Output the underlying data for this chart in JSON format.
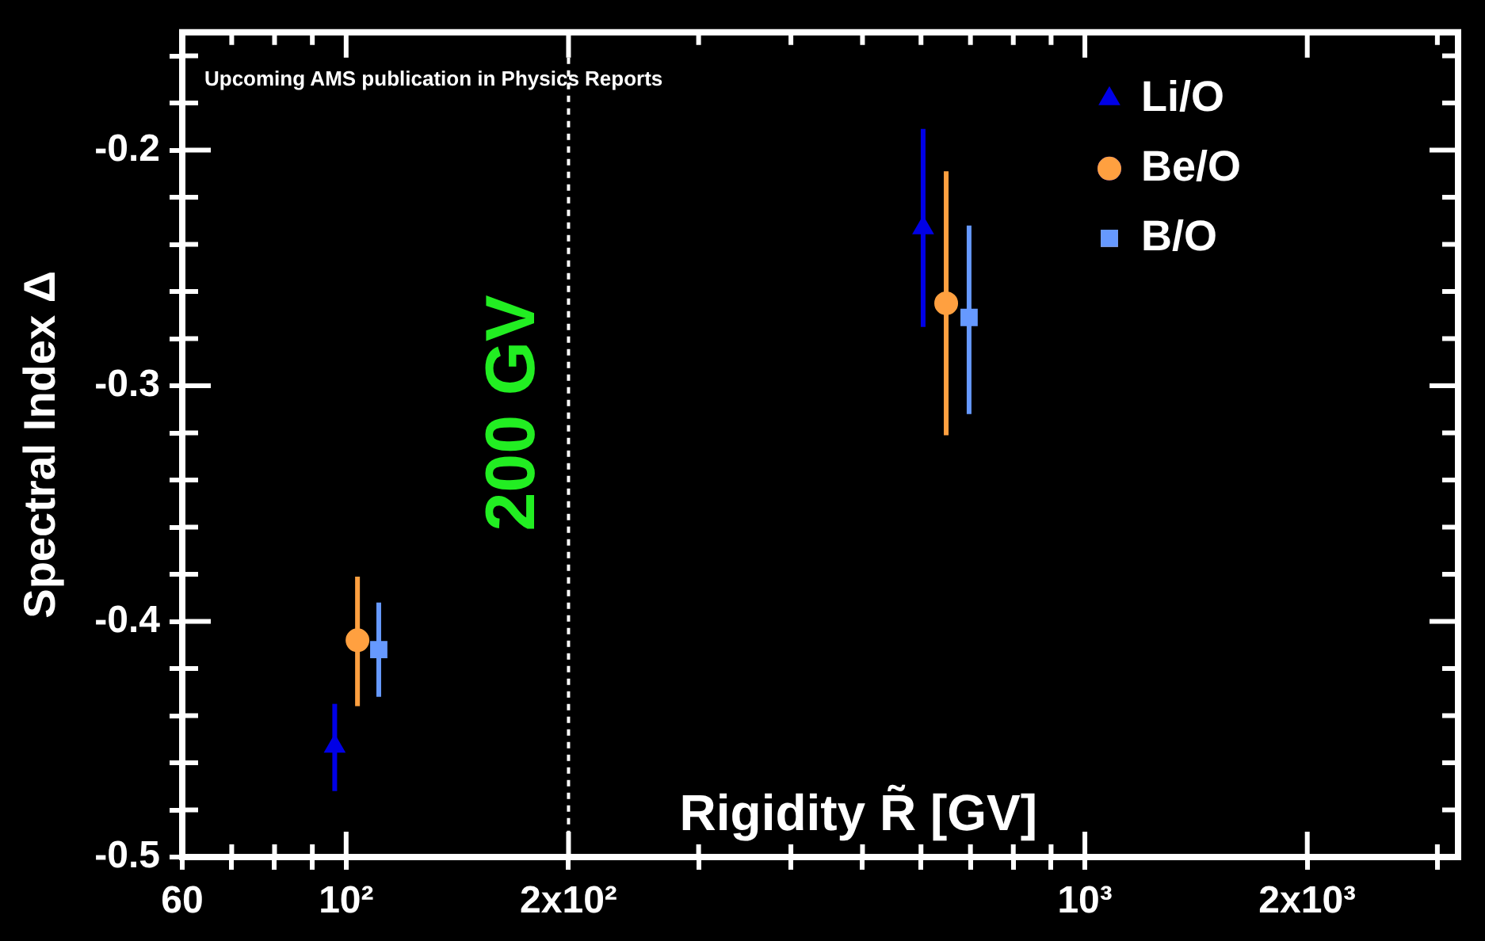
{
  "chart_data": {
    "type": "scatter",
    "xlabel": "Rigidity R̃ [GV]",
    "ylabel": "Spectral Index Δ",
    "annotations": [
      "Upcoming AMS publication in Physics Reports"
    ],
    "log": "x",
    "grid": false,
    "legend": "top right",
    "xlim": [
      60,
      3200
    ],
    "ylim": [
      -0.5,
      -0.15
    ],
    "xticks": [
      {
        "value": 60,
        "label": "60"
      },
      {
        "value": 70,
        "label": null
      },
      {
        "value": 80,
        "label": null
      },
      {
        "value": 90,
        "label": null
      },
      {
        "value": 100,
        "label": "10²"
      },
      {
        "value": 200,
        "label": "2x10²"
      },
      {
        "value": 300,
        "label": null
      },
      {
        "value": 400,
        "label": null
      },
      {
        "value": 500,
        "label": null
      },
      {
        "value": 600,
        "label": null
      },
      {
        "value": 700,
        "label": null
      },
      {
        "value": 800,
        "label": null
      },
      {
        "value": 900,
        "label": null
      },
      {
        "value": 1000,
        "label": "10³"
      },
      {
        "value": 2000,
        "label": "2x10³"
      },
      {
        "value": 3000,
        "label": null
      }
    ],
    "yticks": [
      -0.5,
      {
        "value": -0.48,
        "label": null
      },
      {
        "value": -0.46,
        "label": null
      },
      {
        "value": -0.44,
        "label": null
      },
      {
        "value": -0.42,
        "label": null
      },
      -0.4,
      {
        "value": -0.38,
        "label": null
      },
      {
        "value": -0.36,
        "label": null
      },
      {
        "value": -0.34,
        "label": null
      },
      {
        "value": -0.32,
        "label": null
      },
      -0.3,
      {
        "value": -0.28,
        "label": null
      },
      {
        "value": -0.26,
        "label": null
      },
      {
        "value": -0.24,
        "label": null
      },
      {
        "value": -0.22,
        "label": null
      },
      -0.2,
      {
        "value": -0.18,
        "label": null
      },
      {
        "value": -0.16,
        "label": null
      }
    ],
    "ref_lines": [
      {
        "axis": "x",
        "value": 200,
        "label": "200 GV",
        "color": "#ffffff",
        "line_style": "dashed"
      }
    ],
    "series": [
      {
        "name": "Li/O",
        "color": "#0000e6",
        "marker": "triangle",
        "x": [
          96.5,
          604
        ],
        "values": [
          -0.453,
          -0.233
        ],
        "errors": [
          [
            -0.472,
            -0.435
          ],
          [
            -0.275,
            -0.191
          ]
        ]
      },
      {
        "name": "Be/O",
        "color": "#ffa040",
        "marker": "circle",
        "x": [
          103.6,
          649
        ],
        "values": [
          -0.408,
          -0.265
        ],
        "errors": [
          [
            -0.436,
            -0.381
          ],
          [
            -0.321,
            -0.209
          ]
        ]
      },
      {
        "name": "B/O",
        "color": "#6699ff",
        "marker": "square",
        "x": [
          110.7,
          697
        ],
        "values": [
          -0.412,
          -0.271
        ],
        "errors": [
          [
            -0.432,
            -0.392
          ],
          [
            -0.312,
            -0.232
          ]
        ]
      }
    ]
  }
}
